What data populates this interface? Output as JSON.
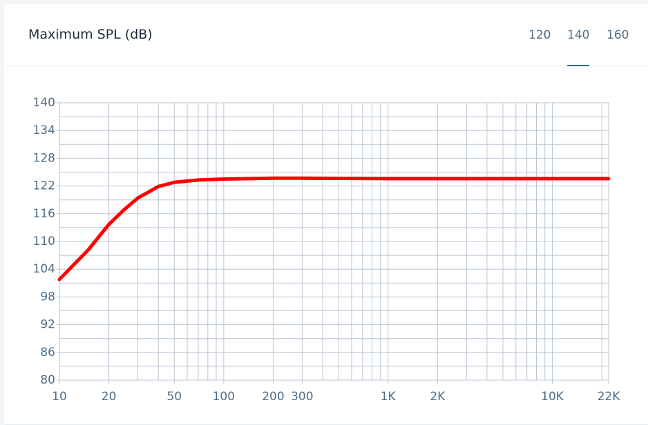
{
  "header": {
    "title": "Maximum SPL (dB)",
    "tabs": [
      "120",
      "140",
      "160"
    ],
    "active_tab": 1
  },
  "chart_data": {
    "type": "line",
    "xscale": "log",
    "grid": true,
    "color": "#ff0000",
    "x": [
      10,
      15,
      20,
      25,
      30,
      40,
      50,
      70,
      100,
      200,
      300,
      1000,
      2000,
      10000,
      22000
    ],
    "values": [
      101.8,
      108.2,
      113.7,
      117.0,
      119.4,
      121.9,
      122.8,
      123.3,
      123.5,
      123.7,
      123.7,
      123.6,
      123.6,
      123.6,
      123.6
    ],
    "xlim": [
      10,
      22000
    ],
    "xticks": [
      10,
      20,
      50,
      100,
      200,
      300,
      {
        "value": 1000,
        "label": "1K"
      },
      {
        "value": 2000,
        "label": "2K"
      },
      {
        "value": 10000,
        "label": "10K"
      },
      {
        "value": 22000,
        "label": "22K"
      }
    ],
    "x_minor_ticks": [
      30,
      40,
      60,
      70,
      80,
      90,
      400,
      500,
      600,
      700,
      800,
      900,
      3000,
      4000,
      5000,
      6000,
      7000,
      8000,
      9000,
      20000
    ],
    "ylim": [
      80,
      140
    ],
    "yticks": [
      80,
      86,
      92,
      98,
      104,
      110,
      116,
      122,
      128,
      134,
      140
    ],
    "y_minor_ticks": [
      83,
      89,
      95,
      101,
      107,
      113,
      119,
      125,
      131,
      137
    ]
  }
}
